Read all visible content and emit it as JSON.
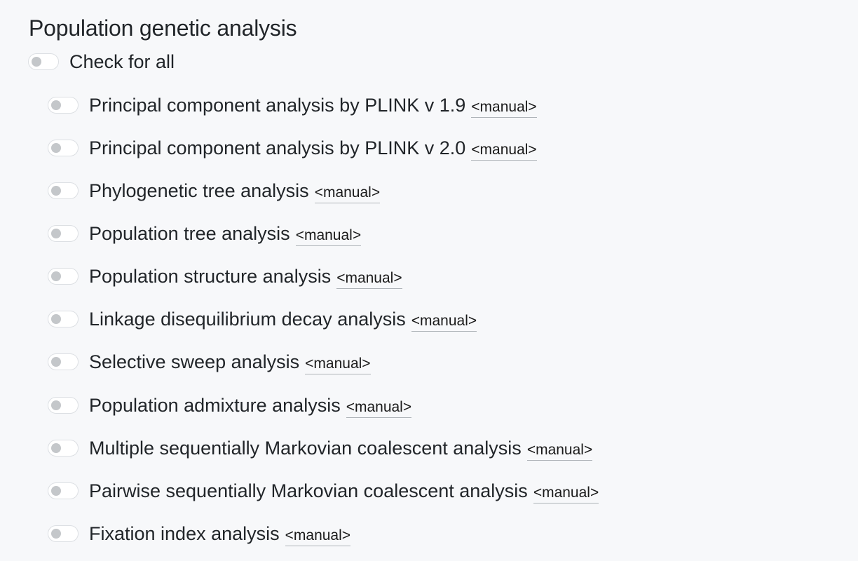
{
  "section": {
    "title": "Population genetic analysis"
  },
  "master": {
    "label": "Check for all",
    "checked": false
  },
  "items": [
    {
      "label": "Principal component analysis by PLINK v 1.9",
      "link": "<manual>",
      "checked": false
    },
    {
      "label": "Principal component analysis by PLINK v 2.0",
      "link": "<manual>",
      "checked": false
    },
    {
      "label": "Phylogenetic tree analysis",
      "link": "<manual>",
      "checked": false
    },
    {
      "label": "Population tree analysis",
      "link": "<manual>",
      "checked": false
    },
    {
      "label": "Population structure analysis",
      "link": "<manual>",
      "checked": false
    },
    {
      "label": "Linkage disequilibrium decay analysis",
      "link": "<manual>",
      "checked": false
    },
    {
      "label": "Selective sweep analysis",
      "link": "<manual>",
      "checked": false
    },
    {
      "label": "Population admixture analysis",
      "link": "<manual>",
      "checked": false
    },
    {
      "label": "Multiple sequentially Markovian coalescent analysis",
      "link": "<manual>",
      "checked": false
    },
    {
      "label": "Pairwise sequentially Markovian coalescent analysis",
      "link": "<manual>",
      "checked": false
    },
    {
      "label": "Fixation index analysis",
      "link": "<manual>",
      "checked": false
    }
  ]
}
